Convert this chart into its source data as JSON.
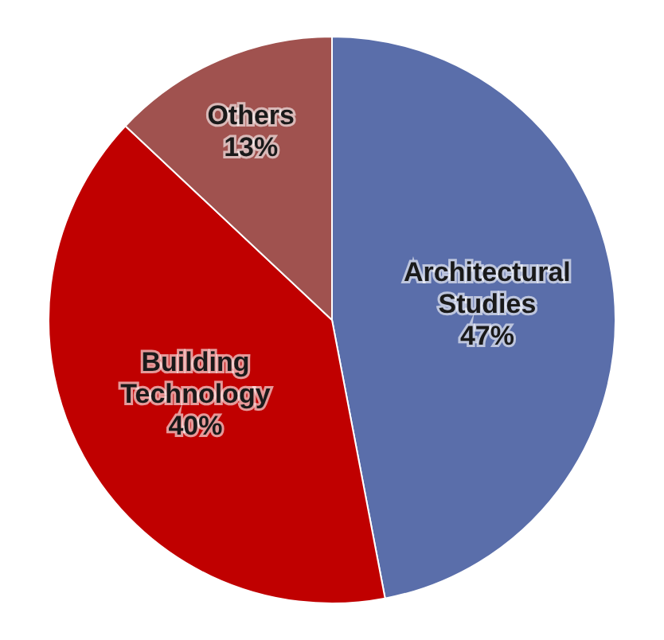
{
  "chart_data": {
    "type": "pie",
    "categories": [
      "Architectural Studies",
      "Building Technology",
      "Others"
    ],
    "values": [
      47,
      40,
      13
    ],
    "value_labels": [
      "47%",
      "40%",
      "13%"
    ],
    "colors": [
      "#5a6eaa",
      "#c00000",
      "#a0524f"
    ],
    "legend": false
  }
}
